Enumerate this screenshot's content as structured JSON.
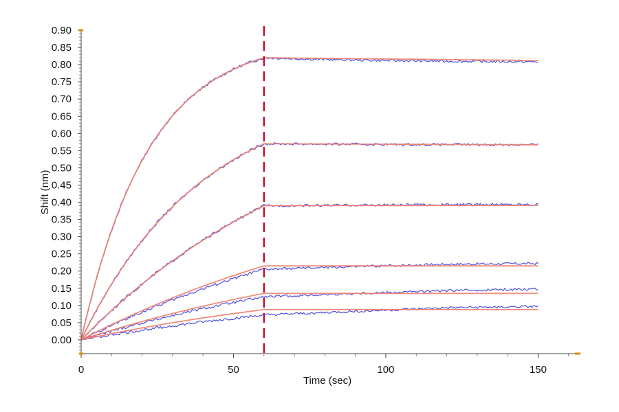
{
  "chart_data": {
    "type": "line",
    "title": "",
    "xlabel": "Time (sec)",
    "ylabel": "Shift (nm)",
    "xlim": [
      0,
      163
    ],
    "ylim": [
      -0.04,
      0.9
    ],
    "x_ticks": [
      0,
      50,
      100,
      150
    ],
    "x_tick_labels": [
      "0",
      "50",
      "100",
      "150"
    ],
    "y_ticks": [
      0.9,
      0.85,
      0.8,
      0.75,
      0.7,
      0.65,
      0.6,
      0.55,
      0.5,
      0.45,
      0.4,
      0.35,
      0.3,
      0.25,
      0.2,
      0.15,
      0.1,
      0.05,
      0.0
    ],
    "y_tick_labels": [
      "0.90",
      "0.85",
      "0.80",
      "0.75",
      "0.70",
      "0.65",
      "0.60",
      "0.55",
      "0.50",
      "0.45",
      "0.40",
      "0.35",
      "0.30",
      "0.25",
      "0.20",
      "0.15",
      "0.10",
      "0.05",
      "0.00"
    ],
    "dissociation_start_x": 60,
    "colors": {
      "measured": "#3b3bdc",
      "fit": "#f08070",
      "marker": "#c8102e",
      "axis_endpoint": "#e08a00"
    },
    "series": [
      {
        "role": "measured",
        "association_plateau": 0.82,
        "dissociation": [
          [
            60,
            0.82
          ],
          [
            80,
            0.815
          ],
          [
            100,
            0.812
          ],
          [
            120,
            0.81
          ],
          [
            150,
            0.808
          ]
        ]
      },
      {
        "role": "fit",
        "association_plateau": 0.82,
        "dissociation": [
          [
            60,
            0.82
          ],
          [
            150,
            0.812
          ]
        ]
      },
      {
        "role": "measured",
        "association_plateau": 0.57,
        "dissociation": [
          [
            60,
            0.57
          ],
          [
            100,
            0.568
          ],
          [
            150,
            0.567
          ]
        ]
      },
      {
        "role": "fit",
        "association_plateau": 0.57,
        "dissociation": [
          [
            60,
            0.57
          ],
          [
            150,
            0.567
          ]
        ]
      },
      {
        "role": "measured",
        "association_plateau": 0.39,
        "dissociation": [
          [
            60,
            0.39
          ],
          [
            100,
            0.392
          ],
          [
            150,
            0.394
          ]
        ]
      },
      {
        "role": "fit",
        "association_plateau": 0.39,
        "dissociation": [
          [
            60,
            0.39
          ],
          [
            150,
            0.391
          ]
        ]
      },
      {
        "role": "measured",
        "association_plateau": 0.205,
        "dissociation": [
          [
            60,
            0.205
          ],
          [
            90,
            0.213
          ],
          [
            120,
            0.22
          ],
          [
            150,
            0.222
          ]
        ]
      },
      {
        "role": "fit",
        "association_plateau": 0.215,
        "dissociation": [
          [
            60,
            0.215
          ],
          [
            150,
            0.215
          ]
        ]
      },
      {
        "role": "measured",
        "association_plateau": 0.125,
        "dissociation": [
          [
            60,
            0.125
          ],
          [
            90,
            0.135
          ],
          [
            120,
            0.143
          ],
          [
            150,
            0.148
          ]
        ]
      },
      {
        "role": "fit",
        "association_plateau": 0.135,
        "dissociation": [
          [
            60,
            0.135
          ],
          [
            150,
            0.135
          ]
        ]
      },
      {
        "role": "measured",
        "association_plateau": 0.072,
        "dissociation": [
          [
            60,
            0.072
          ],
          [
            90,
            0.083
          ],
          [
            120,
            0.093
          ],
          [
            150,
            0.097
          ]
        ]
      },
      {
        "role": "fit",
        "association_plateau": 0.088,
        "dissociation": [
          [
            60,
            0.088
          ],
          [
            150,
            0.088
          ]
        ]
      }
    ]
  }
}
